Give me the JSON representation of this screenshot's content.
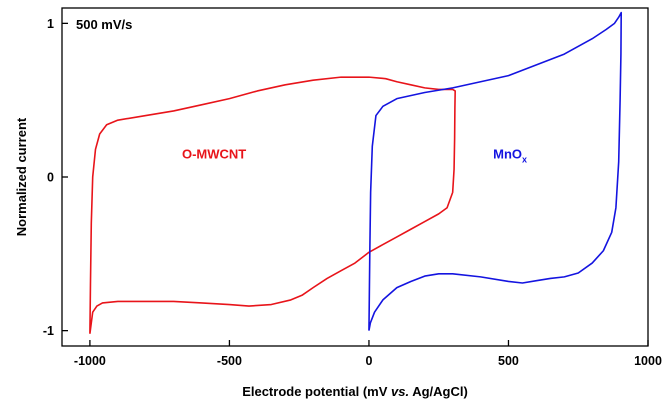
{
  "chart_data": {
    "type": "line",
    "title": "",
    "annotation": "500 mV/s",
    "xlabel_parts": [
      "Electrode potential (mV ",
      "vs.",
      " Ag/AgCl)"
    ],
    "ylabel": "Normalized current",
    "xlim": [
      -1100,
      1000
    ],
    "ylim": [
      -1.1,
      1.1
    ],
    "xticks": [
      -1000,
      -500,
      0,
      500,
      1000
    ],
    "xtick_labels": [
      "-1000",
      "-500",
      "0",
      "500",
      "1000"
    ],
    "yticks": [
      -1,
      0,
      1
    ],
    "ytick_labels": [
      "-1",
      "0",
      "1"
    ],
    "grid": false,
    "series": [
      {
        "name": "O-MWCNT",
        "name_parts": [
          "O-MWCNT"
        ],
        "color": "#e8141a",
        "label_pos": [
          -670,
          0.12
        ],
        "points": [
          [
            -1000,
            -1.02
          ],
          [
            -995,
            -0.95
          ],
          [
            -990,
            -0.88
          ],
          [
            -975,
            -0.84
          ],
          [
            -955,
            -0.82
          ],
          [
            -900,
            -0.81
          ],
          [
            -800,
            -0.81
          ],
          [
            -700,
            -0.81
          ],
          [
            -600,
            -0.82
          ],
          [
            -500,
            -0.83
          ],
          [
            -430,
            -0.84
          ],
          [
            -350,
            -0.83
          ],
          [
            -280,
            -0.8
          ],
          [
            -240,
            -0.77
          ],
          [
            -200,
            -0.72
          ],
          [
            -150,
            -0.66
          ],
          [
            -100,
            -0.61
          ],
          [
            -50,
            -0.56
          ],
          [
            0,
            -0.49
          ],
          [
            50,
            -0.44
          ],
          [
            100,
            -0.39
          ],
          [
            150,
            -0.34
          ],
          [
            200,
            -0.29
          ],
          [
            250,
            -0.24
          ],
          [
            280,
            -0.2
          ],
          [
            300,
            -0.1
          ],
          [
            305,
            0.05
          ],
          [
            307,
            0.25
          ],
          [
            308,
            0.45
          ],
          [
            309,
            0.56
          ],
          [
            300,
            0.57
          ],
          [
            250,
            0.57
          ],
          [
            200,
            0.58
          ],
          [
            150,
            0.6
          ],
          [
            100,
            0.62
          ],
          [
            60,
            0.64
          ],
          [
            0,
            0.65
          ],
          [
            -100,
            0.65
          ],
          [
            -200,
            0.63
          ],
          [
            -300,
            0.6
          ],
          [
            -400,
            0.56
          ],
          [
            -500,
            0.51
          ],
          [
            -600,
            0.47
          ],
          [
            -700,
            0.43
          ],
          [
            -800,
            0.4
          ],
          [
            -900,
            0.37
          ],
          [
            -940,
            0.34
          ],
          [
            -965,
            0.28
          ],
          [
            -980,
            0.18
          ],
          [
            -990,
            0.0
          ],
          [
            -995,
            -0.3
          ],
          [
            -998,
            -0.7
          ],
          [
            -1000,
            -1.02
          ]
        ]
      },
      {
        "name": "MnOx",
        "name_parts": [
          "MnO",
          "x"
        ],
        "color": "#1414e0",
        "label_pos": [
          445,
          0.12
        ],
        "points": [
          [
            0,
            -1.0
          ],
          [
            5,
            -0.95
          ],
          [
            20,
            -0.88
          ],
          [
            50,
            -0.8
          ],
          [
            100,
            -0.72
          ],
          [
            150,
            -0.68
          ],
          [
            200,
            -0.645
          ],
          [
            250,
            -0.63
          ],
          [
            300,
            -0.63
          ],
          [
            400,
            -0.65
          ],
          [
            500,
            -0.68
          ],
          [
            550,
            -0.69
          ],
          [
            600,
            -0.675
          ],
          [
            650,
            -0.66
          ],
          [
            700,
            -0.65
          ],
          [
            750,
            -0.625
          ],
          [
            800,
            -0.56
          ],
          [
            840,
            -0.48
          ],
          [
            870,
            -0.36
          ],
          [
            885,
            -0.2
          ],
          [
            895,
            0.1
          ],
          [
            900,
            0.5
          ],
          [
            903,
            0.8
          ],
          [
            904,
            1.07
          ],
          [
            895,
            1.04
          ],
          [
            880,
            1.0
          ],
          [
            850,
            0.96
          ],
          [
            800,
            0.9
          ],
          [
            700,
            0.8
          ],
          [
            600,
            0.73
          ],
          [
            500,
            0.66
          ],
          [
            400,
            0.62
          ],
          [
            300,
            0.58
          ],
          [
            200,
            0.55
          ],
          [
            100,
            0.51
          ],
          [
            50,
            0.46
          ],
          [
            25,
            0.4
          ],
          [
            12,
            0.2
          ],
          [
            6,
            -0.1
          ],
          [
            3,
            -0.5
          ],
          [
            0,
            -1.0
          ]
        ]
      }
    ]
  }
}
